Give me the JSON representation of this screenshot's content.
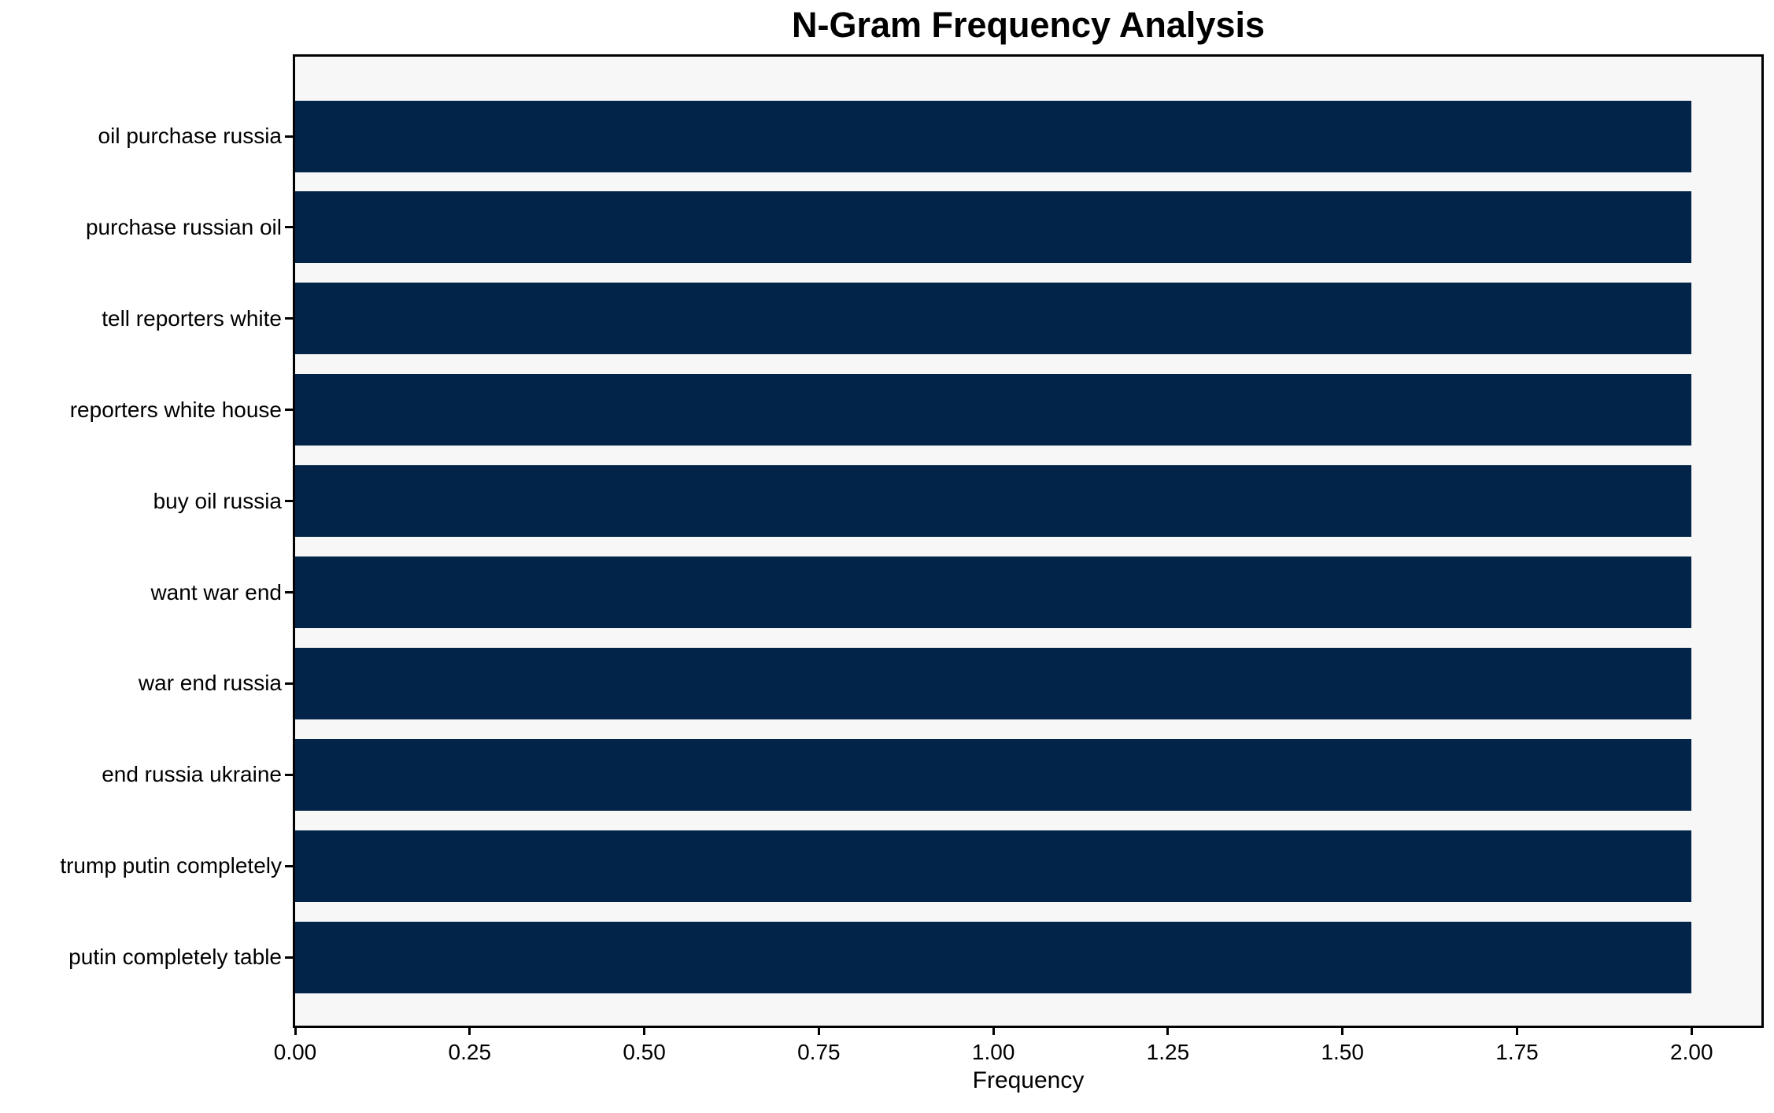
{
  "chart_data": {
    "type": "bar",
    "orientation": "horizontal",
    "title": "N-Gram Frequency Analysis",
    "xlabel": "Frequency",
    "ylabel": "",
    "categories": [
      "oil purchase russia",
      "purchase russian oil",
      "tell reporters white",
      "reporters white house",
      "buy oil russia",
      "want war end",
      "war end russia",
      "end russia ukraine",
      "trump putin completely",
      "putin completely table"
    ],
    "values": [
      2,
      2,
      2,
      2,
      2,
      2,
      2,
      2,
      2,
      2
    ],
    "xticks": [
      "0.00",
      "0.25",
      "0.50",
      "0.75",
      "1.00",
      "1.25",
      "1.50",
      "1.75",
      "2.00"
    ],
    "xlim": [
      0,
      2.1
    ],
    "grid": false,
    "legend": null,
    "colors": {
      "bar": "#032449",
      "plot_background": "#f7f7f7",
      "figure_background": "#ffffff",
      "axis": "#000000",
      "text": "#000000"
    }
  }
}
